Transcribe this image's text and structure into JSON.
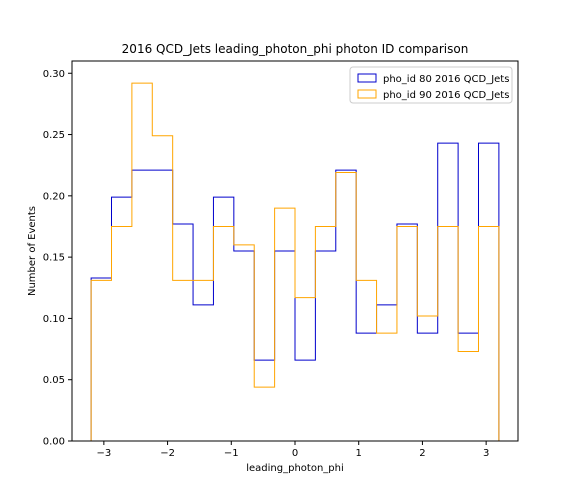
{
  "chart_data": {
    "type": "histogram-step",
    "title": "2016 QCD_Jets leading_photon_phi photon ID comparison",
    "xlabel": "leading_photon_phi",
    "ylabel": "Number of Events",
    "xlim": [
      -3.5,
      3.5
    ],
    "ylim": [
      0,
      0.31
    ],
    "xticks": [
      -3,
      -2,
      -1,
      0,
      1,
      2,
      3
    ],
    "xtick_labels": [
      "−3",
      "−2",
      "−1",
      "0",
      "1",
      "2",
      "3"
    ],
    "yticks": [
      0,
      0.05,
      0.1,
      0.15,
      0.2,
      0.25,
      0.3
    ],
    "ytick_labels": [
      "0.00",
      "0.05",
      "0.10",
      "0.15",
      "0.20",
      "0.25",
      "0.30"
    ],
    "bin_edges": [
      -3.2,
      -2.88,
      -2.56,
      -2.24,
      -1.92,
      -1.6,
      -1.28,
      -0.96,
      -0.64,
      -0.32,
      0.0,
      0.32,
      0.64,
      0.96,
      1.28,
      1.6,
      1.92,
      2.24,
      2.56,
      2.88,
      3.2
    ],
    "series": [
      {
        "name": "pho_id 80 2016 QCD_Jets",
        "color": "#0000cc",
        "values": [
          0.133,
          0.199,
          0.221,
          0.221,
          0.177,
          0.111,
          0.199,
          0.155,
          0.066,
          0.155,
          0.066,
          0.155,
          0.221,
          0.088,
          0.111,
          0.177,
          0.088,
          0.243,
          0.088,
          0.243
        ]
      },
      {
        "name": "pho_id 90 2016 QCD_Jets",
        "color": "#ffa500",
        "values": [
          0.131,
          0.175,
          0.292,
          0.249,
          0.131,
          0.131,
          0.175,
          0.16,
          0.044,
          0.19,
          0.117,
          0.175,
          0.219,
          0.131,
          0.088,
          0.175,
          0.102,
          0.175,
          0.073,
          0.175
        ]
      }
    ],
    "legend": {
      "placement": "top-right"
    },
    "grid": false
  }
}
